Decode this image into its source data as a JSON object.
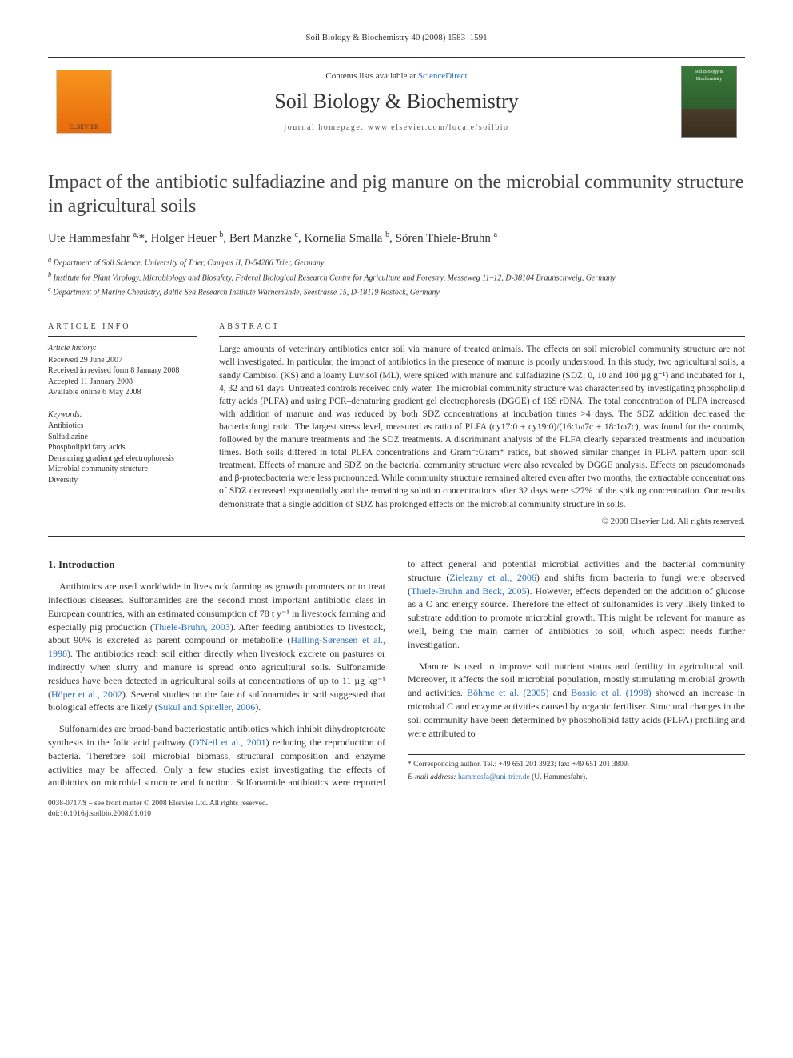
{
  "header": {
    "citation": "Soil Biology & Biochemistry 40 (2008) 1583–1591"
  },
  "banner": {
    "contents_prefix": "Contents lists available at ",
    "contents_link": "ScienceDirect",
    "journal_title": "Soil Biology & Biochemistry",
    "homepage_prefix": "journal homepage: ",
    "homepage_url": "www.elsevier.com/locate/soilbio",
    "publisher_label": "ELSEVIER",
    "cover_label": "Soil Biology & Biochemistry"
  },
  "article": {
    "title": "Impact of the antibiotic sulfadiazine and pig manure on the microbial community structure in agricultural soils",
    "authors_html": "Ute Hammesfahr <sup>a,</sup>*, Holger Heuer <sup>b</sup>, Bert Manzke <sup>c</sup>, Kornelia Smalla <sup>b</sup>, Sören Thiele-Bruhn <sup>a</sup>",
    "affiliations": [
      "a Department of Soil Science, University of Trier, Campus II, D-54286 Trier, Germany",
      "b Institute for Plant Virology, Microbiology and Biosafety, Federal Biological Research Centre for Agriculture and Forestry, Messeweg 11–12, D-38104 Braunschweig, Germany",
      "c Department of Marine Chemistry, Baltic Sea Research Institute Warnemünde, Seestrasse 15, D-18119 Rostock, Germany"
    ]
  },
  "article_info": {
    "label": "ARTICLE INFO",
    "history_head": "Article history:",
    "history": [
      "Received 29 June 2007",
      "Received in revised form 8 January 2008",
      "Accepted 11 January 2008",
      "Available online 6 May 2008"
    ],
    "keywords_head": "Keywords:",
    "keywords": [
      "Antibiotics",
      "Sulfadiazine",
      "Phospholipid fatty acids",
      "Denaturing gradient gel electrophoresis",
      "Microbial community structure",
      "Diversity"
    ]
  },
  "abstract": {
    "label": "ABSTRACT",
    "text": "Large amounts of veterinary antibiotics enter soil via manure of treated animals. The effects on soil microbial community structure are not well investigated. In particular, the impact of antibiotics in the presence of manure is poorly understood. In this study, two agricultural soils, a sandy Cambisol (KS) and a loamy Luvisol (ML), were spiked with manure and sulfadiazine (SDZ; 0, 10 and 100 µg g⁻¹) and incubated for 1, 4, 32 and 61 days. Untreated controls received only water. The microbial community structure was characterised by investigating phospholipid fatty acids (PLFA) and using PCR–denaturing gradient gel electrophoresis (DGGE) of 16S rDNA. The total concentration of PLFA increased with addition of manure and was reduced by both SDZ concentrations at incubation times >4 days. The SDZ addition decreased the bacteria:fungi ratio. The largest stress level, measured as ratio of PLFA (cy17:0 + cy19:0)/(16:1ω7c + 18:1ω7c), was found for the controls, followed by the manure treatments and the SDZ treatments. A discriminant analysis of the PLFA clearly separated treatments and incubation times. Both soils differed in total PLFA concentrations and Gram⁻:Gram⁺ ratios, but showed similar changes in PLFA pattern upon soil treatment. Effects of manure and SDZ on the bacterial community structure were also revealed by DGGE analysis. Effects on pseudomonads and β-proteobacteria were less pronounced. While community structure remained altered even after two months, the extractable concentrations of SDZ decreased exponentially and the remaining solution concentrations after 32 days were ≤27% of the spiking concentration. Our results demonstrate that a single addition of SDZ has prolonged effects on the microbial community structure in soils.",
    "copyright": "© 2008 Elsevier Ltd. All rights reserved."
  },
  "body": {
    "section_heading": "1. Introduction",
    "paragraphs": [
      "Antibiotics are used worldwide in livestock farming as growth promoters or to treat infectious diseases. Sulfonamides are the second most important antibiotic class in European countries, with an estimated consumption of 78 t y⁻¹ in livestock farming and especially pig production (<span class=\"ref-link\">Thiele-Bruhn, 2003</span>). After feeding antibiotics to livestock, about 90% is excreted as parent compound or metabolite (<span class=\"ref-link\">Halling-Sørensen et al., 1998</span>). The antibiotics reach soil either directly when livestock excrete on pastures or indirectly when slurry and manure is spread onto agricultural soils. Sulfonamide residues have been detected in agricultural soils at concentrations of up to 11 µg kg⁻¹ (<span class=\"ref-link\">Höper et al., 2002</span>). Several studies on the fate of sulfonamides in soil suggested that biological effects are likely (<span class=\"ref-link\">Sukul and Spiteller, 2006</span>).",
      "Sulfonamides are broad-band bacteriostatic antibiotics which inhibit dihydropteroate synthesis in the folic acid pathway (<span class=\"ref-link\">O'Neil et al., 2001</span>) reducing the reproduction of bacteria. Therefore soil microbial biomass, structural composition and enzyme activities may be affected. Only a few studies exist investigating the effects of antibiotics on microbial structure and function. Sulfonamide antibiotics were reported to affect general and potential microbial activities and the bacterial community structure (<span class=\"ref-link\">Zielezny et al., 2006</span>) and shifts from bacteria to fungi were observed (<span class=\"ref-link\">Thiele-Bruhn and Beck, 2005</span>). However, effects depended on the addition of glucose as a C and energy source. Therefore the effect of sulfonamides is very likely linked to substrate addition to promote microbial growth. This might be relevant for manure as well, being the main carrier of antibiotics to soil, which aspect needs further investigation.",
      "Manure is used to improve soil nutrient status and fertility in agricultural soil. Moreover, it affects the soil microbial population, mostly stimulating microbial growth and activities. <span class=\"ref-link\">Böhme et al. (2005)</span> and <span class=\"ref-link\">Bossio et al. (1998)</span> showed an increase in microbial C and enzyme activities caused by organic fertiliser. Structural changes in the soil community have been determined by phospholipid fatty acids (PLFA) profiling and were attributed to"
    ]
  },
  "footer": {
    "corresponding": "* Corresponding author. Tel.: +49 651 201 3923; fax: +49 651 201 3809.",
    "email_label": "E-mail address: ",
    "email": "hammesfa@uni-trier.de",
    "email_suffix": " (U. Hammesfahr).",
    "issn_line": "0038-0717/$ – see front matter © 2008 Elsevier Ltd. All rights reserved.",
    "doi": "doi:10.1016/j.soilbio.2008.01.010"
  },
  "colors": {
    "link": "#2a6ebb",
    "text": "#333333",
    "rule": "#333333",
    "elsevier_orange": "#f7941e",
    "cover_green": "#3b7a3b"
  }
}
